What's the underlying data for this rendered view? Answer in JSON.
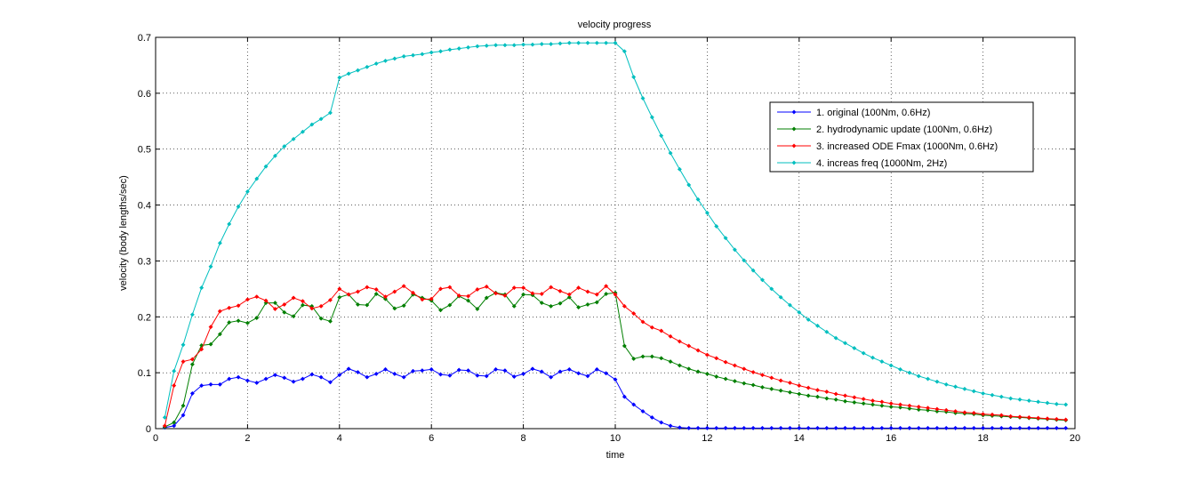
{
  "chart_data": {
    "type": "line",
    "title": "velocity progress",
    "xlabel": "time",
    "ylabel": "velocity (body lengths/sec)",
    "xlim": [
      0,
      20
    ],
    "ylim": [
      0,
      0.7
    ],
    "xticks": [
      0,
      2,
      4,
      6,
      8,
      10,
      12,
      14,
      16,
      18,
      20
    ],
    "yticks": [
      0,
      0.1,
      0.2,
      0.3,
      0.4,
      0.5,
      0.6,
      0.7
    ],
    "grid": true,
    "legend_position": "top-right",
    "series": [
      {
        "name": "1. original (100Nm, 0.6Hz)",
        "color": "#0000ff",
        "x": [
          0.2,
          0.4,
          0.6,
          0.8,
          1.0,
          1.2,
          1.4,
          1.6,
          1.8,
          2.0,
          2.2,
          2.4,
          2.6,
          2.8,
          3.0,
          3.2,
          3.4,
          3.6,
          3.8,
          4.0,
          4.2,
          4.4,
          4.6,
          4.8,
          5.0,
          5.2,
          5.4,
          5.6,
          5.8,
          6.0,
          6.2,
          6.4,
          6.6,
          6.8,
          7.0,
          7.2,
          7.4,
          7.6,
          7.8,
          8.0,
          8.2,
          8.4,
          8.6,
          8.8,
          9.0,
          9.2,
          9.4,
          9.6,
          9.8,
          10.0,
          10.2,
          10.4,
          10.6,
          10.8,
          11.0,
          11.2,
          11.4,
          11.6,
          11.8,
          12.0,
          12.2,
          12.4,
          12.6,
          12.8,
          13.0,
          13.2,
          13.4,
          13.6,
          13.8,
          14.0,
          14.2,
          14.4,
          14.6,
          14.8,
          15.0,
          15.2,
          15.4,
          15.6,
          15.8,
          16.0,
          16.2,
          16.4,
          16.6,
          16.8,
          17.0,
          17.2,
          17.4,
          17.6,
          17.8,
          18.0,
          18.2,
          18.4,
          18.6,
          18.8,
          19.0,
          19.2,
          19.4,
          19.6,
          19.8
        ],
        "values": [
          0.002,
          0.005,
          0.024,
          0.063,
          0.077,
          0.079,
          0.079,
          0.089,
          0.092,
          0.086,
          0.082,
          0.089,
          0.096,
          0.091,
          0.084,
          0.089,
          0.097,
          0.092,
          0.083,
          0.096,
          0.107,
          0.101,
          0.092,
          0.098,
          0.106,
          0.098,
          0.092,
          0.103,
          0.104,
          0.106,
          0.097,
          0.095,
          0.105,
          0.104,
          0.095,
          0.094,
          0.106,
          0.104,
          0.093,
          0.098,
          0.107,
          0.102,
          0.092,
          0.102,
          0.106,
          0.099,
          0.094,
          0.106,
          0.099,
          0.088,
          0.057,
          0.043,
          0.031,
          0.02,
          0.011,
          0.005,
          0.002,
          0.001,
          0.001,
          0.001,
          0.001,
          0.001,
          0.001,
          0.001,
          0.001,
          0.001,
          0.001,
          0.001,
          0.001,
          0.001,
          0.001,
          0.001,
          0.001,
          0.001,
          0.001,
          0.001,
          0.001,
          0.001,
          0.001,
          0.001,
          0.001,
          0.001,
          0.001,
          0.001,
          0.001,
          0.001,
          0.001,
          0.001,
          0.001,
          0.001,
          0.001,
          0.001,
          0.001,
          0.001,
          0.001,
          0.001,
          0.001,
          0.001,
          0.001
        ]
      },
      {
        "name": "2. hydrodynamic update (100Nm, 0.6Hz)",
        "color": "#007f00",
        "x": [
          0.2,
          0.4,
          0.6,
          0.8,
          1.0,
          1.2,
          1.4,
          1.6,
          1.8,
          2.0,
          2.2,
          2.4,
          2.6,
          2.8,
          3.0,
          3.2,
          3.4,
          3.6,
          3.8,
          4.0,
          4.2,
          4.4,
          4.6,
          4.8,
          5.0,
          5.2,
          5.4,
          5.6,
          5.8,
          6.0,
          6.2,
          6.4,
          6.6,
          6.8,
          7.0,
          7.2,
          7.4,
          7.6,
          7.8,
          8.0,
          8.2,
          8.4,
          8.6,
          8.8,
          9.0,
          9.2,
          9.4,
          9.6,
          9.8,
          10.0,
          10.2,
          10.4,
          10.6,
          10.8,
          11.0,
          11.2,
          11.4,
          11.6,
          11.8,
          12.0,
          12.2,
          12.4,
          12.6,
          12.8,
          13.0,
          13.2,
          13.4,
          13.6,
          13.8,
          14.0,
          14.2,
          14.4,
          14.6,
          14.8,
          15.0,
          15.2,
          15.4,
          15.6,
          15.8,
          16.0,
          16.2,
          16.4,
          16.6,
          16.8,
          17.0,
          17.2,
          17.4,
          17.6,
          17.8,
          18.0,
          18.2,
          18.4,
          18.6,
          18.8,
          19.0,
          19.2,
          19.4,
          19.6,
          19.8
        ],
        "values": [
          0.003,
          0.011,
          0.041,
          0.115,
          0.149,
          0.151,
          0.169,
          0.19,
          0.193,
          0.189,
          0.198,
          0.225,
          0.225,
          0.208,
          0.201,
          0.221,
          0.219,
          0.197,
          0.192,
          0.235,
          0.24,
          0.222,
          0.221,
          0.241,
          0.232,
          0.215,
          0.22,
          0.24,
          0.234,
          0.229,
          0.212,
          0.221,
          0.237,
          0.229,
          0.214,
          0.234,
          0.243,
          0.24,
          0.219,
          0.24,
          0.239,
          0.225,
          0.219,
          0.224,
          0.235,
          0.217,
          0.222,
          0.226,
          0.241,
          0.243,
          0.148,
          0.125,
          0.129,
          0.129,
          0.126,
          0.12,
          0.113,
          0.107,
          0.102,
          0.098,
          0.093,
          0.089,
          0.085,
          0.081,
          0.078,
          0.074,
          0.071,
          0.068,
          0.065,
          0.062,
          0.059,
          0.057,
          0.054,
          0.052,
          0.049,
          0.047,
          0.045,
          0.043,
          0.041,
          0.039,
          0.038,
          0.036,
          0.034,
          0.033,
          0.031,
          0.03,
          0.028,
          0.027,
          0.026,
          0.024,
          0.023,
          0.022,
          0.021,
          0.02,
          0.019,
          0.018,
          0.017,
          0.016,
          0.015
        ]
      },
      {
        "name": "3. increased ODE Fmax (1000Nm, 0.6Hz)",
        "color": "#ff0000",
        "x": [
          0.2,
          0.4,
          0.6,
          0.8,
          1.0,
          1.2,
          1.4,
          1.6,
          1.8,
          2.0,
          2.2,
          2.4,
          2.6,
          2.8,
          3.0,
          3.2,
          3.4,
          3.6,
          3.8,
          4.0,
          4.2,
          4.4,
          4.6,
          4.8,
          5.0,
          5.2,
          5.4,
          5.6,
          5.8,
          6.0,
          6.2,
          6.4,
          6.6,
          6.8,
          7.0,
          7.2,
          7.4,
          7.6,
          7.8,
          8.0,
          8.2,
          8.4,
          8.6,
          8.8,
          9.0,
          9.2,
          9.4,
          9.6,
          9.8,
          10.0,
          10.2,
          10.4,
          10.6,
          10.8,
          11.0,
          11.2,
          11.4,
          11.6,
          11.8,
          12.0,
          12.2,
          12.4,
          12.6,
          12.8,
          13.0,
          13.2,
          13.4,
          13.6,
          13.8,
          14.0,
          14.2,
          14.4,
          14.6,
          14.8,
          15.0,
          15.2,
          15.4,
          15.6,
          15.8,
          16.0,
          16.2,
          16.4,
          16.6,
          16.8,
          17.0,
          17.2,
          17.4,
          17.6,
          17.8,
          18.0,
          18.2,
          18.4,
          18.6,
          18.8,
          19.0,
          19.2,
          19.4,
          19.6,
          19.8
        ],
        "values": [
          0.005,
          0.077,
          0.12,
          0.124,
          0.142,
          0.182,
          0.21,
          0.216,
          0.22,
          0.231,
          0.236,
          0.229,
          0.214,
          0.222,
          0.234,
          0.228,
          0.215,
          0.219,
          0.23,
          0.25,
          0.24,
          0.245,
          0.253,
          0.249,
          0.236,
          0.245,
          0.255,
          0.243,
          0.231,
          0.232,
          0.25,
          0.253,
          0.238,
          0.237,
          0.249,
          0.254,
          0.242,
          0.238,
          0.252,
          0.252,
          0.242,
          0.241,
          0.253,
          0.246,
          0.24,
          0.252,
          0.245,
          0.24,
          0.255,
          0.24,
          0.219,
          0.206,
          0.191,
          0.181,
          0.175,
          0.165,
          0.156,
          0.148,
          0.14,
          0.132,
          0.126,
          0.119,
          0.113,
          0.107,
          0.101,
          0.096,
          0.091,
          0.086,
          0.082,
          0.077,
          0.073,
          0.069,
          0.066,
          0.062,
          0.059,
          0.056,
          0.053,
          0.05,
          0.048,
          0.045,
          0.043,
          0.041,
          0.039,
          0.037,
          0.035,
          0.033,
          0.031,
          0.029,
          0.028,
          0.026,
          0.025,
          0.024,
          0.022,
          0.021,
          0.02,
          0.019,
          0.018,
          0.017,
          0.016
        ]
      },
      {
        "name": "4. increas freq (1000Nm, 2Hz)",
        "color": "#00bfbf",
        "x": [
          0.2,
          0.4,
          0.6,
          0.8,
          1.0,
          1.2,
          1.4,
          1.6,
          1.8,
          2.0,
          2.2,
          2.4,
          2.6,
          2.8,
          3.0,
          3.2,
          3.4,
          3.6,
          3.8,
          4.0,
          4.2,
          4.4,
          4.6,
          4.8,
          5.0,
          5.2,
          5.4,
          5.6,
          5.8,
          6.0,
          6.2,
          6.4,
          6.6,
          6.8,
          7.0,
          7.2,
          7.4,
          7.6,
          7.8,
          8.0,
          8.2,
          8.4,
          8.6,
          8.8,
          9.0,
          9.2,
          9.4,
          9.6,
          9.8,
          10.0,
          10.2,
          10.4,
          10.6,
          10.8,
          11.0,
          11.2,
          11.4,
          11.6,
          11.8,
          12.0,
          12.2,
          12.4,
          12.6,
          12.8,
          13.0,
          13.2,
          13.4,
          13.6,
          13.8,
          14.0,
          14.2,
          14.4,
          14.6,
          14.8,
          15.0,
          15.2,
          15.4,
          15.6,
          15.8,
          16.0,
          16.2,
          16.4,
          16.6,
          16.8,
          17.0,
          17.2,
          17.4,
          17.6,
          17.8,
          18.0,
          18.2,
          18.4,
          18.6,
          18.8,
          19.0,
          19.2,
          19.4,
          19.6,
          19.8
        ],
        "values": [
          0.02,
          0.103,
          0.15,
          0.204,
          0.252,
          0.29,
          0.332,
          0.366,
          0.397,
          0.424,
          0.447,
          0.469,
          0.488,
          0.505,
          0.518,
          0.531,
          0.544,
          0.554,
          0.565,
          0.628,
          0.635,
          0.641,
          0.647,
          0.653,
          0.658,
          0.662,
          0.666,
          0.668,
          0.67,
          0.673,
          0.675,
          0.678,
          0.68,
          0.682,
          0.684,
          0.685,
          0.686,
          0.686,
          0.686,
          0.687,
          0.687,
          0.688,
          0.688,
          0.689,
          0.69,
          0.69,
          0.69,
          0.69,
          0.69,
          0.69,
          0.675,
          0.629,
          0.591,
          0.557,
          0.524,
          0.493,
          0.464,
          0.436,
          0.41,
          0.386,
          0.362,
          0.341,
          0.32,
          0.301,
          0.283,
          0.266,
          0.25,
          0.235,
          0.221,
          0.208,
          0.195,
          0.184,
          0.173,
          0.162,
          0.153,
          0.144,
          0.135,
          0.127,
          0.12,
          0.113,
          0.106,
          0.1,
          0.094,
          0.089,
          0.084,
          0.079,
          0.075,
          0.071,
          0.067,
          0.063,
          0.06,
          0.057,
          0.054,
          0.052,
          0.05,
          0.048,
          0.046,
          0.044,
          0.043
        ]
      }
    ]
  }
}
